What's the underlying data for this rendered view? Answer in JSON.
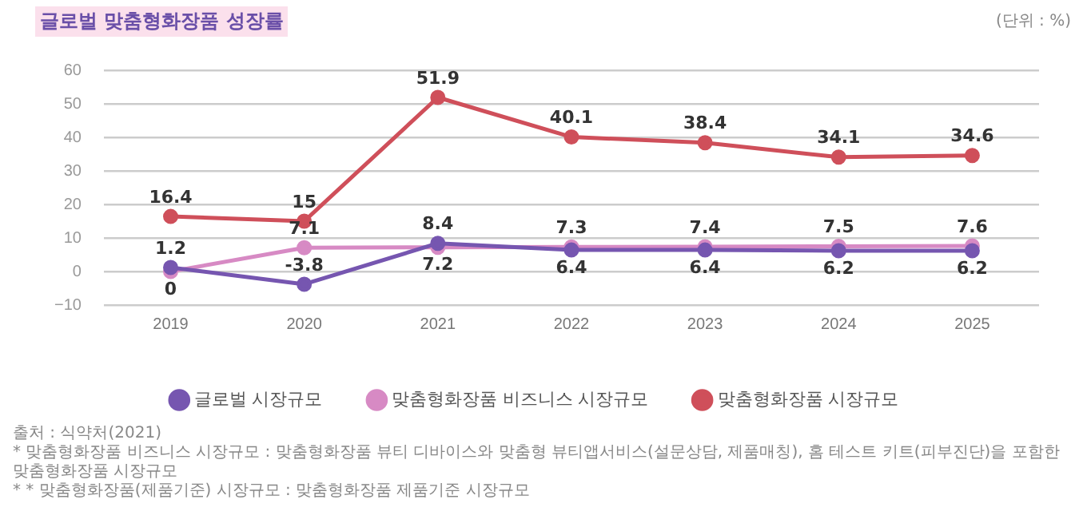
{
  "chart_data": {
    "type": "line",
    "title": "글로벌 맞춤형화장품 성장률",
    "categories": [
      "2019",
      "2020",
      "2021",
      "2022",
      "2023",
      "2024",
      "2025"
    ],
    "series": [
      {
        "name": "글로벌 시장규모",
        "color": "#7656b0",
        "values": [
          1.2,
          -3.8,
          8.4,
          6.4,
          6.4,
          6.2,
          6.2
        ]
      },
      {
        "name": "맞춤형화장품 비즈니스 시장규모",
        "color": "#d78ac4",
        "values": [
          0,
          7.1,
          7.2,
          7.3,
          7.4,
          7.5,
          7.6
        ]
      },
      {
        "name": "맞춤형화장품 시장규모",
        "color": "#cf4f5a",
        "values": [
          16.4,
          15,
          51.9,
          40.1,
          38.4,
          34.1,
          34.6
        ]
      }
    ],
    "ylim": [
      -10,
      60
    ],
    "yticks": [
      -10,
      0,
      10,
      20,
      30,
      40,
      50,
      60
    ],
    "grid": "y",
    "legend": "bottom",
    "marker": "circle",
    "line_style": "solid",
    "data_labels": true,
    "annotations": [
      "(단위 : %)",
      "출처 : 식약처(2021)",
      "* 맞춤형화장품 비즈니스 시장규모 : 맞춤형화장품 뷰티 디바이스와 맞춤형 뷰티앱서비스(설문상담, 제품매칭), 홈 테스트 키트(피부진단)을 포함한 맞춤형화장품 시장규모",
      "* * 맞춤형화장품(제품기준) 시장규모 : 맞춤형화장품 제품기준 시장규모"
    ]
  }
}
